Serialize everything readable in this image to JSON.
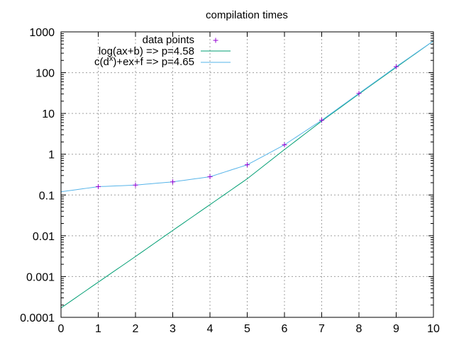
{
  "chart_data": {
    "type": "scatter",
    "title": "compilation times",
    "xlabel": "",
    "ylabel": "",
    "xlim": [
      0,
      10
    ],
    "ylim": [
      0.0001,
      1000
    ],
    "y_scale": "log",
    "grid": true,
    "legend_position": "top-left",
    "x_ticks": [
      "0",
      "1",
      "2",
      "3",
      "4",
      "5",
      "6",
      "7",
      "8",
      "9",
      "10"
    ],
    "y_ticks": [
      "0.0001",
      "0.001",
      "0.01",
      "0.1",
      "1",
      "10",
      "100",
      "1000"
    ],
    "series": [
      {
        "name": "data points",
        "kind": "points",
        "marker": "+",
        "color": "#9400d3",
        "x": [
          1,
          2,
          3,
          4,
          5,
          6,
          7,
          8,
          9
        ],
        "y": [
          0.16,
          0.175,
          0.21,
          0.28,
          0.55,
          1.7,
          6.8,
          31,
          140
        ]
      },
      {
        "name": "log(ax+b) => p=4.58",
        "kind": "line",
        "color": "#009e73",
        "x": [
          0,
          1,
          2,
          3,
          4,
          5,
          6,
          7,
          8,
          9,
          10
        ],
        "y": [
          0.00017,
          0.00073,
          0.0031,
          0.0135,
          0.058,
          0.25,
          1.3,
          6.5,
          30,
          135,
          600
        ]
      },
      {
        "name_parts": [
          "c(d",
          "x",
          ")+ex+f => p=4.65"
        ],
        "kind": "line",
        "color": "#56b4e9",
        "x": [
          0,
          1,
          2,
          3,
          4,
          5,
          6,
          7,
          8,
          9,
          10
        ],
        "y": [
          0.12,
          0.16,
          0.175,
          0.21,
          0.28,
          0.55,
          1.7,
          6.8,
          31,
          140,
          600
        ]
      }
    ]
  }
}
